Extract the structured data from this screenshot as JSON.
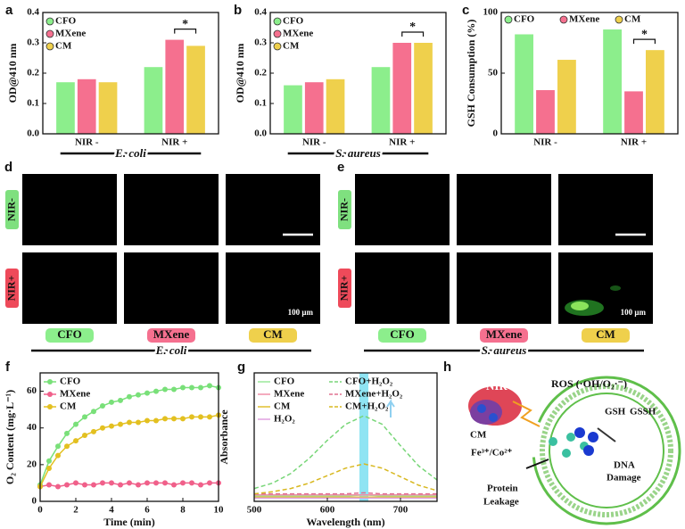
{
  "chart_data": [
    {
      "type": "bar",
      "panel": "a",
      "ylabel": "OD@410 nm",
      "categories": [
        "NIR -",
        "NIR +"
      ],
      "group_label": "E. coli",
      "annotation": "*",
      "ylim": [
        0,
        0.4
      ],
      "yticks": [
        {
          "value": 0,
          "label": "0.0"
        },
        0.1,
        0.2,
        0.3,
        0.4
      ],
      "legend": "upper left",
      "series": [
        {
          "name": "CFO",
          "color": "#8cee8c",
          "values": [
            0.17,
            0.22
          ]
        },
        {
          "name": "MXene",
          "color": "#f5708f",
          "values": [
            0.18,
            0.31
          ]
        },
        {
          "name": "CM",
          "color": "#efd04c",
          "values": [
            0.17,
            0.29
          ]
        }
      ]
    },
    {
      "type": "bar",
      "panel": "b",
      "ylabel": "OD@410 nm",
      "categories": [
        "NIR -",
        "NIR +"
      ],
      "group_label": "S. aureus",
      "annotation": "*",
      "ylim": [
        0,
        0.4
      ],
      "yticks": [
        {
          "value": 0,
          "label": "0.0"
        },
        0.1,
        0.2,
        0.3,
        0.4
      ],
      "legend": "upper left",
      "series": [
        {
          "name": "CFO",
          "color": "#8cee8c",
          "values": [
            0.16,
            0.22
          ]
        },
        {
          "name": "MXene",
          "color": "#f5708f",
          "values": [
            0.17,
            0.3
          ]
        },
        {
          "name": "CM",
          "color": "#efd04c",
          "values": [
            0.18,
            0.3
          ]
        }
      ]
    },
    {
      "type": "bar",
      "panel": "c",
      "ylabel": "GSH Consumption (%)",
      "categories": [
        "NIR -",
        "NIR +"
      ],
      "annotation": "*",
      "ylim": [
        0,
        100
      ],
      "yticks": [
        0,
        50,
        100
      ],
      "legend": "upper center",
      "series": [
        {
          "name": "CFO",
          "color": "#8cee8c",
          "values": [
            82,
            86
          ]
        },
        {
          "name": "MXene",
          "color": "#f5708f",
          "values": [
            36,
            35
          ]
        },
        {
          "name": "CM",
          "color": "#efd04c",
          "values": [
            61,
            69
          ]
        }
      ]
    },
    {
      "type": "line",
      "panel": "f",
      "ylabel": "O₂ Content (mg·L⁻¹)",
      "xlabel": "Time (min)",
      "markers": true,
      "legend": "upper left",
      "x": [
        0,
        0.5,
        1,
        1.5,
        2,
        2.5,
        3,
        3.5,
        4,
        4.5,
        5,
        5.5,
        6,
        6.5,
        7,
        7.5,
        8,
        8.5,
        9,
        9.5,
        10
      ],
      "xlim": [
        0,
        10
      ],
      "xticks": [
        0,
        2,
        4,
        6,
        8,
        10
      ],
      "ylim": [
        0,
        70
      ],
      "yticks": [
        0,
        20,
        40,
        60
      ],
      "series": [
        {
          "name": "CFO",
          "color": "#79e079",
          "values": [
            9,
            22,
            30,
            37,
            42,
            46,
            49,
            52,
            54,
            55,
            57,
            58,
            59,
            60,
            61,
            61,
            62,
            62,
            62,
            63,
            62
          ]
        },
        {
          "name": "MXene",
          "color": "#f0608a",
          "values": [
            8,
            9,
            8,
            9,
            10,
            9,
            9,
            10,
            10,
            9,
            10,
            9,
            10,
            10,
            10,
            9,
            10,
            10,
            9,
            10,
            10
          ]
        },
        {
          "name": "CM",
          "color": "#e3c020",
          "values": [
            8,
            18,
            25,
            30,
            33,
            36,
            38,
            40,
            41,
            42,
            43,
            43,
            44,
            44,
            45,
            45,
            45,
            46,
            46,
            46,
            47
          ]
        }
      ]
    },
    {
      "type": "line",
      "panel": "g",
      "ylabel": "Absorbance",
      "xlabel": "Wavelength (nm)",
      "legend": "upper left",
      "legend_ncol": 2,
      "highlight": 650,
      "x": [
        500,
        525,
        550,
        575,
        600,
        625,
        650,
        675,
        700,
        725,
        750
      ],
      "xlim": [
        500,
        750
      ],
      "xticks": [
        500,
        600,
        700
      ],
      "ylim": [
        0,
        1.2
      ],
      "series": [
        {
          "name": "CFO",
          "color": "#9be89b",
          "values": [
            0.05,
            0.05,
            0.05,
            0.05,
            0.05,
            0.05,
            0.06,
            0.05,
            0.05,
            0.05,
            0.05
          ]
        },
        {
          "name": "CFO+H₂O₂",
          "color": "#78d678",
          "dashed": true,
          "values": [
            0.12,
            0.17,
            0.26,
            0.4,
            0.57,
            0.72,
            0.8,
            0.72,
            0.52,
            0.33,
            0.2
          ]
        },
        {
          "name": "MXene",
          "color": "#f08fa8",
          "values": [
            0.06,
            0.06,
            0.06,
            0.06,
            0.06,
            0.06,
            0.06,
            0.06,
            0.06,
            0.06,
            0.06
          ]
        },
        {
          "name": "MXene+H₂O₂",
          "color": "#e07090",
          "dashed": true,
          "values": [
            0.07,
            0.07,
            0.07,
            0.07,
            0.07,
            0.07,
            0.08,
            0.07,
            0.07,
            0.07,
            0.07
          ]
        },
        {
          "name": "CM",
          "color": "#e0c030",
          "values": [
            0.04,
            0.04,
            0.04,
            0.04,
            0.04,
            0.04,
            0.04,
            0.04,
            0.04,
            0.04,
            0.04
          ]
        },
        {
          "name": "CM+H₂O₂",
          "color": "#d8b820",
          "dashed": true,
          "values": [
            0.07,
            0.09,
            0.12,
            0.17,
            0.24,
            0.31,
            0.35,
            0.31,
            0.23,
            0.15,
            0.1
          ]
        },
        {
          "name": "H₂O₂",
          "color": "#e0a0e0",
          "values": [
            0.03,
            0.03,
            0.03,
            0.03,
            0.03,
            0.03,
            0.03,
            0.03,
            0.03,
            0.03,
            0.03
          ]
        }
      ]
    }
  ],
  "panels": [
    {
      "label": "d",
      "rows": [
        "NIR-",
        "NIR+"
      ],
      "columns": [
        "CFO",
        "MXene",
        "CM"
      ],
      "organism": "E. coli",
      "scale_bar": "100 μm"
    },
    {
      "label": "e",
      "rows": [
        "NIR-",
        "NIR+"
      ],
      "columns": [
        "CFO",
        "MXene",
        "CM"
      ],
      "organism": "S. aureus",
      "scale_bar": "100 μm"
    }
  ],
  "schematic": {
    "label": "h",
    "nir": "NIR",
    "ros": "ROS (·OH/O₂·⁻)",
    "cm": "CM",
    "ions": "Fe³⁺/Co²⁺",
    "gsh": "GSH",
    "gssh": "GSSH",
    "dna": [
      "DNA",
      "Damage"
    ],
    "protein": [
      "Protein",
      "Leakage"
    ]
  }
}
